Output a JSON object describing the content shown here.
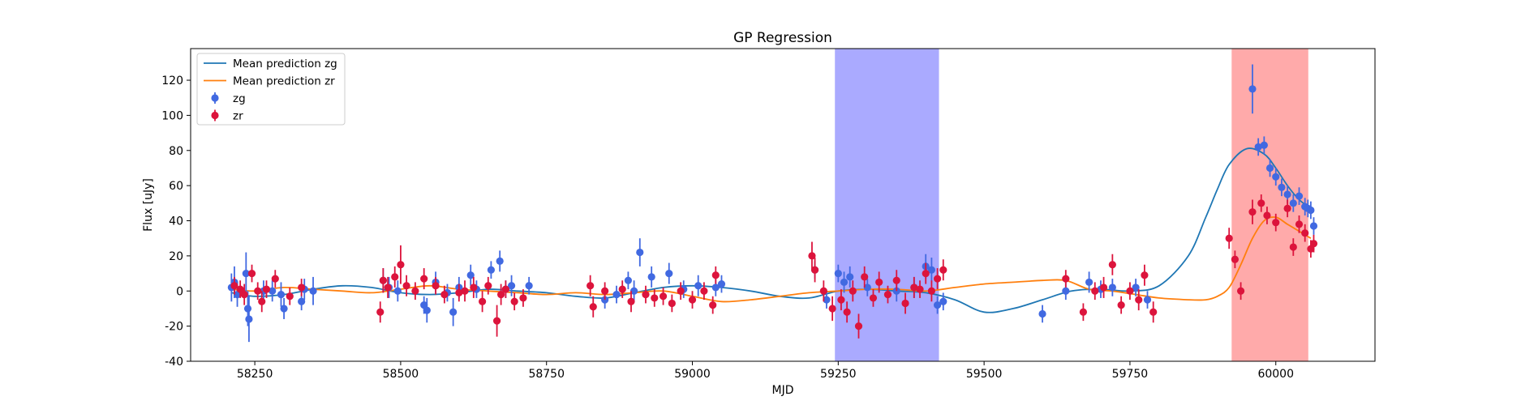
{
  "chart_data": {
    "type": "scatter",
    "title": "GP Regression",
    "xlabel": "MJD",
    "ylabel": "Flux [uJy]",
    "xlim": [
      58140,
      60170
    ],
    "ylim": [
      -40,
      138
    ],
    "xticks": [
      58250,
      58500,
      58750,
      59000,
      59250,
      59500,
      59750,
      60000
    ],
    "yticks": [
      -40,
      -20,
      0,
      20,
      40,
      60,
      80,
      100,
      120
    ],
    "grid": false,
    "legend": {
      "placement": "top-left",
      "entries": [
        {
          "label": "Mean prediction zg",
          "kind": "line",
          "color": "#1f77b4"
        },
        {
          "label": "Mean prediction zr",
          "kind": "line",
          "color": "#ff7f0e"
        },
        {
          "label": "zg",
          "kind": "errorbar",
          "color": "#4169e1"
        },
        {
          "label": "zr",
          "kind": "errorbar",
          "color": "#dc143c"
        }
      ]
    },
    "shaded_regions": [
      {
        "x0": 59245,
        "x1": 59422,
        "color": "#aaaaff"
      },
      {
        "x0": 59925,
        "x1": 60055,
        "color": "#ffaaaa"
      }
    ],
    "series": [
      {
        "name": "Mean prediction zg",
        "kind": "line",
        "color": "#1f77b4",
        "x": [
          58210,
          58250,
          58300,
          58350,
          58400,
          58450,
          58500,
          58550,
          58600,
          58650,
          58700,
          58750,
          58800,
          58850,
          58900,
          58950,
          59000,
          59050,
          59100,
          59150,
          59200,
          59250,
          59300,
          59350,
          59400,
          59450,
          59500,
          59550,
          59600,
          59650,
          59700,
          59750,
          59800,
          59850,
          59880,
          59900,
          59920,
          59950,
          59980,
          60000,
          60020,
          60040,
          60060
        ],
        "y": [
          -1,
          -3,
          -2,
          1,
          3,
          2,
          -1,
          -2,
          -1,
          1,
          0,
          -1,
          -3,
          -4,
          -1,
          2,
          3,
          2,
          0,
          -3,
          -4,
          0,
          1,
          0,
          -1,
          -5,
          -12,
          -10,
          -5,
          0,
          1,
          0,
          3,
          20,
          42,
          58,
          72,
          81,
          78,
          70,
          60,
          52,
          47
        ]
      },
      {
        "name": "Mean prediction zr",
        "kind": "line",
        "color": "#ff7f0e",
        "x": [
          58210,
          58250,
          58300,
          58350,
          58400,
          58450,
          58500,
          58550,
          58600,
          58650,
          58700,
          58750,
          58800,
          58850,
          58900,
          58950,
          59000,
          59050,
          59100,
          59150,
          59200,
          59250,
          59300,
          59350,
          59400,
          59450,
          59500,
          59550,
          59600,
          59640,
          59680,
          59720,
          59760,
          59800,
          59850,
          59880,
          59900,
          59920,
          59940,
          59960,
          59980,
          60000,
          60020,
          60040,
          60060
        ],
        "y": [
          1,
          0,
          2,
          1,
          0,
          -1,
          1,
          3,
          1,
          0,
          -1,
          -2,
          -1,
          -2,
          -1,
          0,
          -3,
          -6,
          -5,
          -3,
          -1,
          0,
          1,
          1,
          0,
          2,
          4,
          5,
          6,
          6,
          1,
          0,
          -2,
          -4,
          -5,
          -5,
          -3,
          2,
          15,
          30,
          40,
          42,
          38,
          34,
          30
        ]
      },
      {
        "name": "zg",
        "kind": "errorbar",
        "color": "#4169e1",
        "x": [
          58210,
          58215,
          58220,
          58235,
          58238,
          58240,
          58265,
          58280,
          58295,
          58300,
          58330,
          58335,
          58350,
          58470,
          58480,
          58495,
          58540,
          58545,
          58560,
          58580,
          58590,
          58600,
          58620,
          58630,
          58655,
          58670,
          58680,
          58690,
          58720,
          58850,
          58870,
          58890,
          58900,
          58910,
          58930,
          58960,
          58985,
          59010,
          59040,
          59050,
          59210,
          59230,
          59250,
          59260,
          59270,
          59300,
          59350,
          59380,
          59400,
          59410,
          59420,
          59430,
          59600,
          59640,
          59680,
          59700,
          59720,
          59760,
          59780,
          59960,
          59970,
          59980,
          59990,
          60000,
          60010,
          60020,
          60030,
          60040,
          60050,
          60055,
          60060,
          60065
        ],
        "y": [
          2,
          5,
          -2,
          10,
          -10,
          -16,
          0,
          0,
          -2,
          -10,
          -6,
          1,
          0,
          6,
          2,
          0,
          -8,
          -11,
          5,
          -1,
          -12,
          2,
          9,
          1,
          12,
          17,
          1,
          3,
          3,
          -5,
          -2,
          6,
          0,
          22,
          8,
          10,
          1,
          3,
          2,
          4,
          12,
          -5,
          10,
          5,
          8,
          2,
          0,
          2,
          14,
          12,
          -8,
          -6,
          -13,
          0,
          5,
          1,
          2,
          2,
          -5,
          115,
          82,
          83,
          70,
          65,
          59,
          55,
          50,
          54,
          48,
          47,
          46,
          37
        ],
        "err": [
          8,
          9,
          7,
          12,
          10,
          13,
          6,
          6,
          7,
          6,
          5,
          6,
          8,
          7,
          6,
          6,
          5,
          7,
          6,
          5,
          8,
          6,
          6,
          5,
          5,
          6,
          5,
          6,
          5,
          5,
          5,
          5,
          6,
          8,
          6,
          6,
          5,
          6,
          5,
          5,
          5,
          5,
          5,
          6,
          6,
          5,
          6,
          6,
          7,
          7,
          5,
          5,
          5,
          5,
          6,
          5,
          5,
          5,
          5,
          14,
          5,
          5,
          5,
          5,
          5,
          5,
          5,
          5,
          5,
          5,
          5,
          5
        ]
      },
      {
        "name": "zr",
        "kind": "errorbar",
        "color": "#dc143c",
        "x": [
          58215,
          58225,
          58232,
          58245,
          58255,
          58262,
          58270,
          58285,
          58310,
          58330,
          58465,
          58470,
          58478,
          58490,
          58500,
          58510,
          58525,
          58540,
          58560,
          58575,
          58600,
          58610,
          58625,
          58640,
          58650,
          58665,
          58672,
          58680,
          58695,
          58710,
          58825,
          58830,
          58850,
          58880,
          58895,
          58920,
          58935,
          58950,
          58965,
          58980,
          59000,
          59020,
          59035,
          59040,
          59205,
          59210,
          59225,
          59240,
          59255,
          59265,
          59275,
          59285,
          59295,
          59310,
          59320,
          59335,
          59350,
          59365,
          59380,
          59390,
          59400,
          59410,
          59420,
          59430,
          59640,
          59670,
          59690,
          59705,
          59720,
          59735,
          59750,
          59765,
          59775,
          59790,
          59920,
          59930,
          59940,
          59960,
          59975,
          59985,
          60000,
          60020,
          60030,
          60040,
          60050,
          60060,
          60065
        ],
        "y": [
          3,
          1,
          -2,
          10,
          0,
          -6,
          1,
          7,
          -3,
          2,
          -12,
          6,
          2,
          8,
          15,
          3,
          0,
          7,
          3,
          -2,
          -1,
          0,
          2,
          -6,
          3,
          -17,
          -2,
          1,
          -6,
          -4,
          3,
          -9,
          0,
          1,
          -6,
          -2,
          -4,
          -3,
          -7,
          0,
          -5,
          0,
          -8,
          9,
          20,
          12,
          0,
          -10,
          -5,
          -12,
          0,
          -20,
          8,
          -4,
          5,
          -2,
          6,
          -7,
          2,
          1,
          10,
          0,
          7,
          12,
          7,
          -12,
          0,
          2,
          15,
          -8,
          0,
          -5,
          9,
          -12,
          30,
          18,
          0,
          45,
          50,
          43,
          39,
          47,
          25,
          38,
          33,
          24,
          27
        ],
        "err": [
          5,
          5,
          6,
          5,
          5,
          6,
          5,
          5,
          5,
          5,
          6,
          7,
          6,
          6,
          11,
          6,
          5,
          6,
          5,
          5,
          5,
          6,
          6,
          6,
          5,
          9,
          6,
          5,
          5,
          5,
          6,
          6,
          5,
          5,
          6,
          5,
          5,
          5,
          5,
          5,
          5,
          5,
          5,
          5,
          8,
          7,
          6,
          7,
          6,
          6,
          6,
          7,
          6,
          5,
          6,
          5,
          6,
          6,
          6,
          5,
          6,
          6,
          6,
          6,
          5,
          5,
          5,
          6,
          6,
          5,
          5,
          6,
          6,
          6,
          6,
          5,
          5,
          7,
          5,
          5,
          5,
          5,
          5,
          5,
          5,
          5,
          5
        ]
      }
    ]
  }
}
